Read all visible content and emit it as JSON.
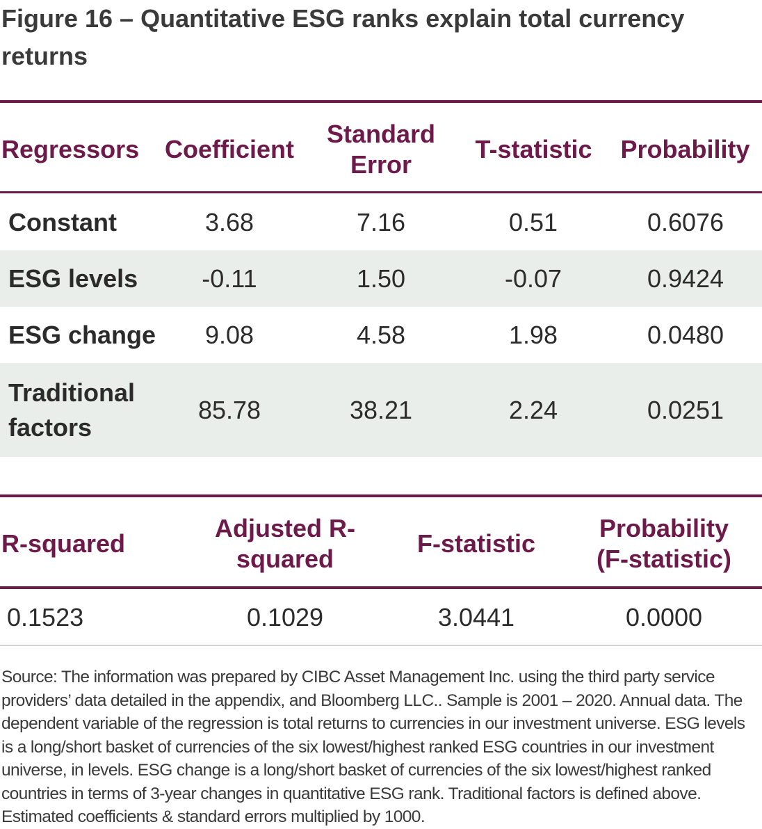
{
  "title": "Figure 16 – Quantitative ESG ranks explain total currency returns",
  "table1": {
    "headers": [
      "Regressors",
      "Coefficient",
      "Standard Error",
      "T-statistic",
      "Probability"
    ],
    "rows": [
      {
        "label": "Constant",
        "coefficient": "3.68",
        "std_error": "7.16",
        "t_stat": "0.51",
        "probability": "0.6076"
      },
      {
        "label": "ESG levels",
        "coefficient": "-0.11",
        "std_error": "1.50",
        "t_stat": "-0.07",
        "probability": "0.9424"
      },
      {
        "label": "ESG change",
        "coefficient": "9.08",
        "std_error": "4.58",
        "t_stat": "1.98",
        "probability": "0.0480"
      },
      {
        "label": "Traditional factors",
        "coefficient": "85.78",
        "std_error": "38.21",
        "t_stat": "2.24",
        "probability": "0.0251"
      }
    ]
  },
  "table2": {
    "headers": [
      "R-squared",
      "Adjusted R-squared",
      "F-statistic",
      "Probability (F-statistic)"
    ],
    "values": [
      "0.1523",
      "0.1029",
      "3.0441",
      "0.0000"
    ]
  },
  "footnote": "Source: The information was prepared by CIBC Asset Management Inc. using the third party service providers’ data detailed in the appendix, and Bloomberg LLC.. Sample is 2001 – 2020. Annual data. The dependent variable of the regression is total returns to currencies in our investment universe. ESG levels is a long/short basket of currencies of the six lowest/highest ranked ESG countries in our investment universe, in levels. ESG change is a long/short basket of currencies of the six lowest/highest ranked countries in terms of 3-year changes in quantitative ESG rank. Traditional factors is defined above. Estimated coefficients & standard errors multiplied by 1000.",
  "colors": {
    "accent": "#6d1a4b",
    "row_shade": "#e9eeea"
  }
}
